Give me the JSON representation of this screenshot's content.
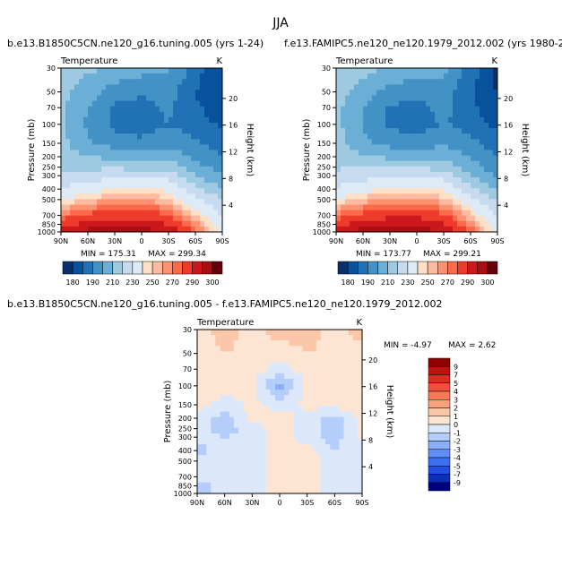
{
  "page_title": "JJA",
  "colors": {
    "t_scale": [
      "#08306b",
      "#08519c",
      "#2171b5",
      "#4292c6",
      "#6baed6",
      "#9ecae1",
      "#c6dbef",
      "#deebf7",
      "#fde0c5",
      "#fcbba1",
      "#fc9272",
      "#fb6a4a",
      "#ef3b2c",
      "#cb181d",
      "#a50f15",
      "#67000d"
    ],
    "d_scale": [
      "#000080",
      "#0a2fbf",
      "#1f50e0",
      "#3b6ff0",
      "#5f8ff5",
      "#8aaef7",
      "#b5cdfa",
      "#dbe8fc",
      "#fde5d4",
      "#fcc6a8",
      "#fba07c",
      "#f87a55",
      "#f0513a",
      "#dd2a22",
      "#c0120f",
      "#8f0000"
    ]
  },
  "chart_data": [
    {
      "id": "left",
      "type": "heatmap",
      "title": "b.e13.B1850C5CN.ne120_g16.tuning.005 (yrs 1-24)",
      "label_left": "Temperature",
      "label_right": "K",
      "ylabel": "Pressure (mb)",
      "ylabel_right": "Height (km)",
      "x_ticks": [
        "90N",
        "60N",
        "30N",
        "0",
        "30S",
        "60S",
        "90S"
      ],
      "y_ticks": [
        "30",
        "50",
        "70",
        "100",
        "150",
        "200",
        "250",
        "300",
        "400",
        "500",
        "700",
        "850",
        "1000"
      ],
      "height_ticks": [
        "20",
        "16",
        "12",
        "8",
        "4"
      ],
      "min_text": "MIN = 175.31",
      "max_text": "MAX = 299.34",
      "x": [
        90,
        60,
        30,
        0,
        -30,
        -60,
        -90
      ],
      "levels": [
        30,
        50,
        70,
        100,
        150,
        200,
        250,
        300,
        400,
        500,
        700,
        850,
        1000
      ],
      "values": [
        [
          225,
          222,
          218,
          214,
          212,
          195,
          180
        ],
        [
          223,
          215,
          205,
          202,
          205,
          190,
          180
        ],
        [
          222,
          210,
          198,
          196,
          202,
          192,
          183
        ],
        [
          222,
          208,
          197,
          194,
          200,
          195,
          188
        ],
        [
          223,
          212,
          205,
          203,
          207,
          202,
          196
        ],
        [
          225,
          220,
          217,
          215,
          217,
          208,
          200
        ],
        [
          228,
          228,
          228,
          227,
          226,
          214,
          205
        ],
        [
          232,
          235,
          238,
          238,
          236,
          220,
          210
        ],
        [
          240,
          246,
          250,
          250,
          248,
          232,
          220
        ],
        [
          250,
          256,
          260,
          260,
          256,
          242,
          230
        ],
        [
          265,
          272,
          276,
          276,
          270,
          255,
          240
        ],
        [
          275,
          284,
          288,
          287,
          280,
          262,
          245
        ],
        [
          285,
          293,
          298,
          297,
          288,
          268,
          248
        ]
      ],
      "colorbar_labels": [
        "180",
        "190",
        "210",
        "230",
        "250",
        "270",
        "290",
        "300"
      ]
    },
    {
      "id": "right",
      "type": "heatmap",
      "title": "f.e13.FAMIPC5.ne120_ne120.1979_2012.002 (yrs 1980-2",
      "label_left": "Temperature",
      "label_right": "K",
      "ylabel": "Pressure (mb)",
      "ylabel_right": "Height (km)",
      "x_ticks": [
        "90N",
        "60N",
        "30N",
        "0",
        "30S",
        "60S",
        "90S"
      ],
      "y_ticks": [
        "30",
        "50",
        "70",
        "100",
        "150",
        "200",
        "250",
        "300",
        "400",
        "500",
        "700",
        "850",
        "1000"
      ],
      "height_ticks": [
        "20",
        "16",
        "12",
        "8",
        "4"
      ],
      "min_text": "MIN = 173.77",
      "max_text": "MAX = 299.21",
      "x": [
        90,
        60,
        30,
        0,
        -30,
        -60,
        -90
      ],
      "levels": [
        30,
        50,
        70,
        100,
        150,
        200,
        250,
        300,
        400,
        500,
        700,
        850,
        1000
      ],
      "values": [
        [
          226,
          223,
          219,
          215,
          213,
          196,
          178
        ],
        [
          224,
          216,
          206,
          203,
          206,
          191,
          179
        ],
        [
          223,
          211,
          199,
          197,
          203,
          193,
          182
        ],
        [
          223,
          209,
          198,
          195,
          201,
          196,
          187
        ],
        [
          224,
          213,
          206,
          204,
          208,
          203,
          195
        ],
        [
          226,
          221,
          218,
          216,
          218,
          209,
          199
        ],
        [
          229,
          229,
          229,
          228,
          227,
          215,
          204
        ],
        [
          233,
          236,
          239,
          239,
          237,
          221,
          209
        ],
        [
          241,
          247,
          251,
          251,
          249,
          233,
          219
        ],
        [
          251,
          257,
          261,
          261,
          257,
          243,
          229
        ],
        [
          266,
          273,
          277,
          277,
          271,
          256,
          239
        ],
        [
          276,
          285,
          289,
          288,
          281,
          263,
          244
        ],
        [
          286,
          294,
          298,
          298,
          289,
          269,
          247
        ]
      ],
      "colorbar_labels": [
        "180",
        "190",
        "210",
        "230",
        "250",
        "270",
        "290",
        "300"
      ]
    },
    {
      "id": "diff",
      "type": "heatmap",
      "title": "b.e13.B1850C5CN.ne120_g16.tuning.005 - f.e13.FAMIPC5.ne120_ne120.1979_2012.002",
      "label_left": "Temperature",
      "label_right": "K",
      "ylabel": "Pressure (mb)",
      "ylabel_right": "Height (km)",
      "x_ticks": [
        "90N",
        "60N",
        "30N",
        "0",
        "30S",
        "60S",
        "90S"
      ],
      "y_ticks": [
        "30",
        "50",
        "70",
        "100",
        "150",
        "200",
        "250",
        "300",
        "400",
        "500",
        "700",
        "850",
        "1000"
      ],
      "height_ticks": [
        "20",
        "16",
        "12",
        "8",
        "4"
      ],
      "min_text": "MIN = -4.97",
      "max_text": "MAX = 2.62",
      "x": [
        90,
        60,
        30,
        0,
        -30,
        -60,
        -90
      ],
      "levels": [
        30,
        50,
        70,
        100,
        150,
        200,
        250,
        300,
        400,
        500,
        700,
        850,
        1000
      ],
      "values": [
        [
          0.5,
          1.5,
          0.5,
          1.5,
          1.5,
          0.5,
          1.5
        ],
        [
          0.5,
          1.0,
          0.8,
          0.5,
          1.0,
          0.8,
          0.5
        ],
        [
          0.5,
          0.5,
          0.5,
          -0.5,
          0.5,
          0.5,
          0.5
        ],
        [
          0.5,
          0.5,
          0.3,
          -2.5,
          0.3,
          0.5,
          0.5
        ],
        [
          0.5,
          -0.5,
          0.3,
          -0.5,
          0.3,
          0.5,
          0.5
        ],
        [
          -0.5,
          -1.5,
          0.3,
          0.5,
          -0.5,
          -1.5,
          0.5
        ],
        [
          -0.5,
          -1.5,
          -0.5,
          0.5,
          -0.5,
          -1.5,
          0.3
        ],
        [
          -0.5,
          -1.0,
          -0.5,
          0.5,
          -0.5,
          -1.5,
          0.3
        ],
        [
          -1.5,
          -0.5,
          -0.5,
          0.5,
          0.5,
          -1.0,
          -0.5
        ],
        [
          -0.5,
          -0.5,
          -0.5,
          0.5,
          0.5,
          -0.5,
          -0.5
        ],
        [
          -0.5,
          -0.5,
          -0.5,
          0.5,
          0.5,
          -0.5,
          -0.5
        ],
        [
          -1.5,
          -0.5,
          -0.5,
          0.5,
          0.5,
          -0.5,
          -0.5
        ],
        [
          -1.5,
          -0.5,
          -0.5,
          0.5,
          0.5,
          -0.5,
          -0.5
        ]
      ],
      "colorbar_labels": [
        "9",
        "7",
        "5",
        "4",
        "3",
        "2",
        "1",
        "0",
        "-1",
        "-2",
        "-3",
        "-4",
        "-5",
        "-7",
        "-9"
      ]
    }
  ]
}
